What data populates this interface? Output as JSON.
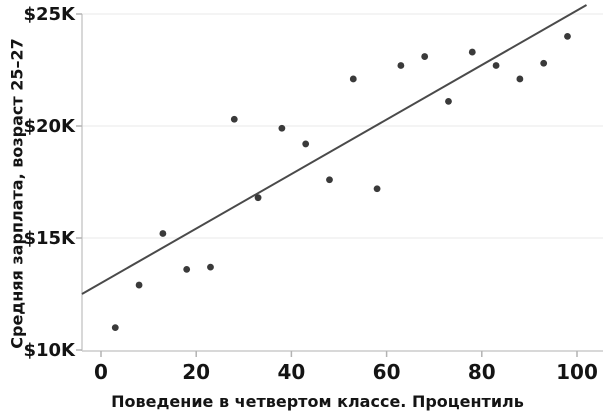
{
  "chart_data": {
    "type": "scatter",
    "title": "",
    "xlabel": "Поведение в четвертом классе. Процентиль",
    "ylabel": "Средняя зарплата, возраст 25–27",
    "x": [
      3,
      8,
      13,
      18,
      23,
      28,
      33,
      38,
      43,
      48,
      53,
      58,
      63,
      68,
      73,
      78,
      83,
      88,
      93,
      98
    ],
    "y": [
      11.0,
      12.9,
      15.2,
      13.6,
      13.7,
      20.3,
      16.8,
      19.9,
      19.2,
      17.6,
      22.1,
      17.2,
      22.7,
      23.1,
      21.1,
      23.3,
      22.7,
      22.1,
      22.8,
      24.0
    ],
    "y_unit": "thousand USD",
    "xlim": [
      -4,
      106
    ],
    "ylim": [
      10,
      25.5
    ],
    "x_ticks": [
      0,
      20,
      40,
      60,
      80,
      100
    ],
    "x_tick_labels": [
      "0",
      "20",
      "40",
      "60",
      "80",
      "100"
    ],
    "y_ticks": [
      10,
      15,
      20,
      25
    ],
    "y_tick_labels": [
      "$10K",
      "$15K",
      "$20K",
      "$25K"
    ],
    "y_gridlines": [
      15,
      20,
      25
    ],
    "grid": "horizontal only, very light",
    "legend": "none",
    "trendline": {
      "x1": -4,
      "y1": 12.5,
      "x2": 102,
      "y2": 25.4,
      "slope_k_per_percentile": 0.121,
      "intercept_k": 13.0
    },
    "point_count": 20
  },
  "colors": {
    "background": "#ffffff",
    "point": "#3a3a3a",
    "trendline": "#4a4a4a",
    "axis": "#cccccc",
    "tick": "#b3b3b3",
    "gridline": "#f1f1f1",
    "text": "#141414"
  }
}
